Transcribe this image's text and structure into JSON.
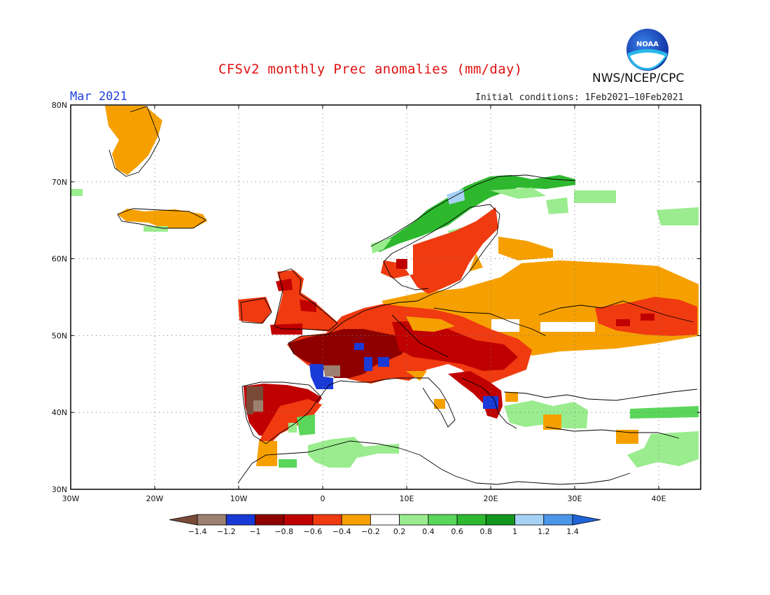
{
  "title": "CFSv2 monthly Prec anomalies (mm/day)",
  "month_label": "Mar 2021",
  "initial_conditions": "Initial conditions:  1Feb2021—10Feb2021",
  "agency": "NWS/NCEP/CPC",
  "logo_text": "NOAA",
  "map": {
    "lon_range": [
      -30,
      45
    ],
    "lat_range": [
      30,
      80
    ],
    "lat_ticks": [
      "30N",
      "40N",
      "50N",
      "60N",
      "70N",
      "80N"
    ],
    "lon_ticks": [
      "30W",
      "20W",
      "10W",
      "0",
      "10E",
      "20E",
      "30E",
      "40E"
    ],
    "grid": "dotted"
  },
  "colorbar": {
    "labels": [
      "-1.4",
      "-1.2",
      "-1",
      "-0.8",
      "-0.6",
      "-0.4",
      "-0.2",
      "0.2",
      "0.4",
      "0.6",
      "0.8",
      "1",
      "1.2",
      "1.4"
    ],
    "colors": [
      "#7a4a38",
      "#9c8070",
      "#1a3ad8",
      "#8e0000",
      "#c00000",
      "#f03a10",
      "#f5a000",
      "#ffffff",
      "#9aec8e",
      "#5ad65a",
      "#2eb82e",
      "#14961e",
      "#a6d2f5",
      "#4c96ea",
      "#2064d8"
    ]
  },
  "regions": [
    {
      "name": "Greenland",
      "color": "#f5a000"
    },
    {
      "name": "Iceland",
      "color": "#f5a000"
    },
    {
      "name": "Ireland and Britain",
      "color": "#f03a10"
    },
    {
      "name": "France and Benelux",
      "color": "#8e0000"
    },
    {
      "name": "Bay of Biscay",
      "color": "#1a3ad8"
    },
    {
      "name": "Iberia",
      "color": "#c00000"
    },
    {
      "name": "Portugal",
      "color": "#7a4a38"
    },
    {
      "name": "Central Europe",
      "color": "#c00000"
    },
    {
      "name": "Southern Scandinavia",
      "color": "#f03a10"
    },
    {
      "name": "Norway coast",
      "color": "#2eb82e"
    },
    {
      "name": "Eastern Europe",
      "color": "#f5a000"
    },
    {
      "name": "Russia",
      "color": "#f03a10"
    },
    {
      "name": "Balkans",
      "color": "#c00000"
    },
    {
      "name": "North Africa",
      "color": "#9aec8e"
    },
    {
      "name": "Turkey",
      "color": "#9aec8e"
    }
  ]
}
